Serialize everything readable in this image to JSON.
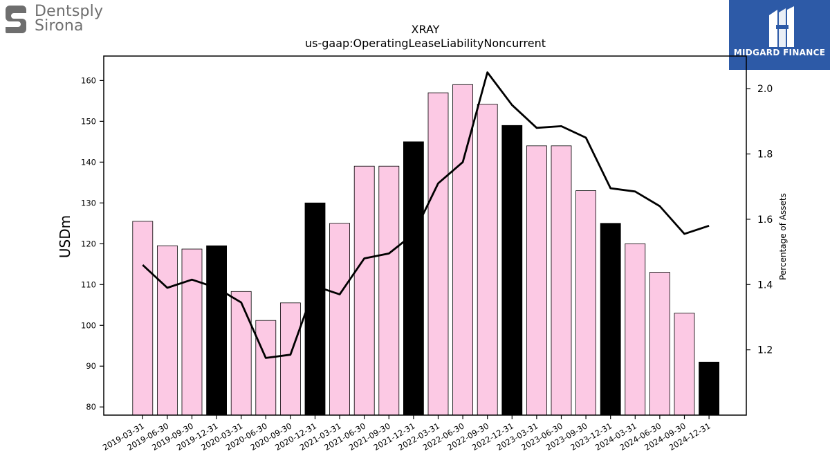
{
  "logos": {
    "left": {
      "icon": "dentsply-sirona-s-icon",
      "text_line1": "Dentsply",
      "text_line2": "Sirona",
      "color": "#6e6e6e"
    },
    "right": {
      "icon": "midgard-m-icon",
      "text": "MIDGARD FINANCE",
      "background": "#2d5aa7"
    }
  },
  "chart_data": {
    "type": "bar",
    "title": "XRAY",
    "subtitle": "us-gaap:OperatingLeaseLiabilityNoncurrent",
    "ylabel": "USDm",
    "y2label": "Percentage of Assets",
    "ylim": [
      78,
      166
    ],
    "y2lim": [
      1.0,
      2.1
    ],
    "yticks": [
      80,
      90,
      100,
      110,
      120,
      130,
      140,
      150,
      160
    ],
    "y2ticks": [
      1.2,
      1.4,
      1.6,
      1.8,
      2.0
    ],
    "y2tick_labels": [
      "1.2",
      "1.4",
      "1.6",
      "1.8",
      "2.0"
    ],
    "grid": false,
    "categories": [
      "2019-03-31",
      "2019-06-30",
      "2019-09-30",
      "2019-12-31",
      "2020-03-31",
      "2020-06-30",
      "2020-09-30",
      "2020-12-31",
      "2021-03-31",
      "2021-06-30",
      "2021-09-30",
      "2021-12-31",
      "2022-03-31",
      "2022-06-30",
      "2022-09-30",
      "2022-12-31",
      "2023-03-31",
      "2023-06-30",
      "2023-09-30",
      "2023-12-31",
      "2024-03-31",
      "2024-06-30",
      "2024-09-30",
      "2024-12-31"
    ],
    "series": [
      {
        "type": "bar",
        "axis": "left",
        "values": [
          125.5,
          119.5,
          118.7,
          119.5,
          108.3,
          101.2,
          105.5,
          130.0,
          125.0,
          139.0,
          139.0,
          145.0,
          157.0,
          159.0,
          154.2,
          149.0,
          144.0,
          144.0,
          133.0,
          125.0,
          120.0,
          113.0,
          103.0,
          91.0
        ],
        "colors": {
          "quarter": "#fcc9e4",
          "year_end": "#000000"
        }
      },
      {
        "type": "line",
        "axis": "right",
        "color": "#000000",
        "values": [
          1.46,
          1.39,
          1.415,
          1.39,
          1.345,
          1.175,
          1.185,
          1.395,
          1.37,
          1.48,
          1.495,
          1.555,
          1.71,
          1.775,
          2.05,
          1.95,
          1.88,
          1.885,
          1.85,
          1.695,
          1.685,
          1.64,
          1.555,
          1.58
        ]
      }
    ]
  }
}
